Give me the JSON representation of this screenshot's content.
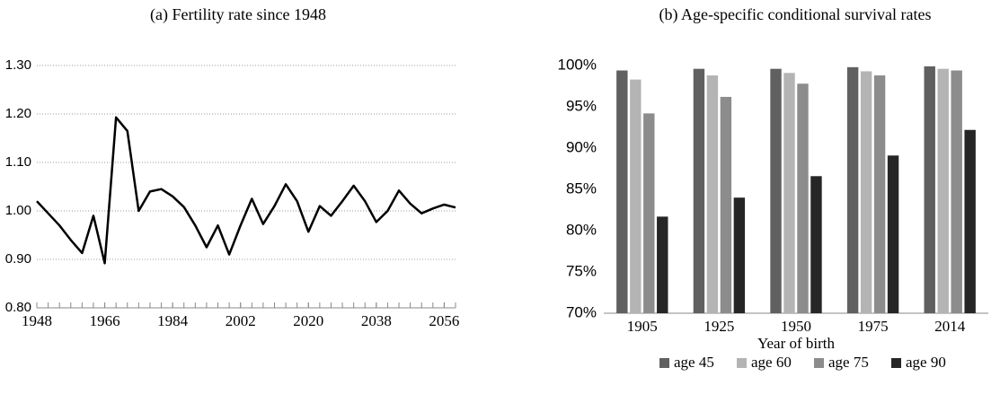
{
  "chart_data": [
    {
      "type": "line",
      "title": "(a) Fertility rate since 1948",
      "x": [
        1948,
        1951,
        1954,
        1957,
        1960,
        1963,
        1966,
        1969,
        1972,
        1975,
        1978,
        1981,
        1984,
        1987,
        1990,
        1993,
        1996,
        1999,
        2002,
        2005,
        2008,
        2011,
        2014,
        2017,
        2020,
        2023,
        2026,
        2029,
        2032,
        2035,
        2038,
        2041,
        2044,
        2047,
        2050,
        2053,
        2056,
        2059
      ],
      "values": [
        1.02,
        0.995,
        0.97,
        0.94,
        0.913,
        0.99,
        0.892,
        1.193,
        1.165,
        1.0,
        1.04,
        1.045,
        1.03,
        1.008,
        0.97,
        0.925,
        0.97,
        0.91,
        0.97,
        1.025,
        0.973,
        1.01,
        1.055,
        1.02,
        0.957,
        1.01,
        0.99,
        1.02,
        1.052,
        1.02,
        0.977,
        1.0,
        1.042,
        1.015,
        0.995,
        1.005,
        1.013,
        1.007
      ],
      "color": "#000000",
      "xlim": [
        1948,
        2059
      ],
      "xticks": [
        1948,
        1966,
        1984,
        2002,
        2020,
        2038,
        2056
      ],
      "ylim": [
        0.8,
        1.3
      ],
      "yticks": [
        {
          "value": 0.8,
          "label": "0.80"
        },
        {
          "value": 0.9,
          "label": "0.90"
        },
        {
          "value": 1.0,
          "label": "1.00"
        },
        {
          "value": 1.1,
          "label": "1.10"
        },
        {
          "value": 1.2,
          "label": "1.20"
        },
        {
          "value": 1.3,
          "label": "1.30"
        }
      ],
      "grid": true
    },
    {
      "type": "bar",
      "title": "(b) Age-specific conditional survival rates",
      "xlabel": "Year of birth",
      "categories": [
        "1905",
        "1925",
        "1950",
        "1975",
        "2014"
      ],
      "series": [
        {
          "name": "age 45",
          "color": "#606060",
          "values": [
            99.4,
            99.6,
            99.6,
            99.8,
            99.9
          ]
        },
        {
          "name": "age 60",
          "color": "#b4b4b4",
          "values": [
            98.3,
            98.8,
            99.1,
            99.3,
            99.6
          ]
        },
        {
          "name": "age 75",
          "color": "#8c8c8c",
          "values": [
            94.2,
            96.2,
            97.8,
            98.8,
            99.4
          ]
        },
        {
          "name": "age 90",
          "color": "#262626",
          "values": [
            81.7,
            84.0,
            86.6,
            89.1,
            92.2
          ]
        }
      ],
      "ylim": [
        70,
        100
      ],
      "yticks": [
        {
          "value": 70,
          "label": "70%"
        },
        {
          "value": 75,
          "label": "75%"
        },
        {
          "value": 80,
          "label": "80%"
        },
        {
          "value": 85,
          "label": "85%"
        },
        {
          "value": 90,
          "label": "90%"
        },
        {
          "value": 95,
          "label": "95%"
        },
        {
          "value": 100,
          "label": "100%"
        }
      ],
      "grid": false,
      "legend": "bottom"
    }
  ]
}
